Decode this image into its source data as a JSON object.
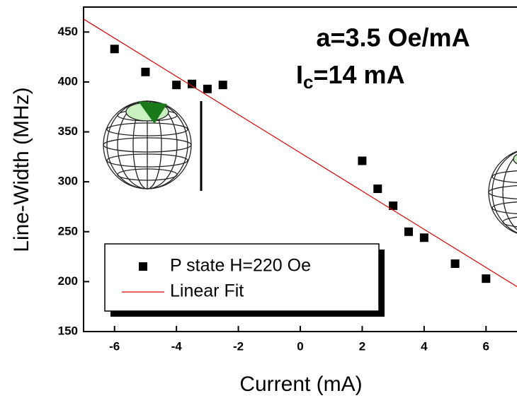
{
  "chart_data": {
    "type": "scatter",
    "x_label": "Current (mA)",
    "y_label": "Line-Width (MHz)",
    "annotation": "a=3.5 Oe/mA",
    "ic_label": {
      "base": "I",
      "sub": "c",
      "rest": "=14 mA"
    },
    "xlim": [
      -7,
      7
    ],
    "xticks": [
      -6,
      -4,
      -2,
      0,
      2,
      4,
      6
    ],
    "ylim": [
      150,
      475
    ],
    "yticks": [
      150,
      200,
      250,
      300,
      350,
      400,
      450
    ],
    "legend": "bottom-left",
    "series": [
      {
        "name": "P state H=220 Oe",
        "type": "scatter",
        "color": "#000000",
        "x": [
          -6,
          -5,
          -4,
          -3.5,
          -3,
          -2.5,
          2,
          2.5,
          3,
          3.5,
          4,
          5,
          6
        ],
        "values": [
          433,
          410,
          397,
          398,
          393,
          397,
          321,
          293,
          276,
          250,
          244,
          218,
          203
        ]
      },
      {
        "name": "Linear Fit",
        "type": "line",
        "color": "#e00000",
        "x": [
          -7,
          7
        ],
        "values": [
          463,
          195
        ]
      }
    ]
  }
}
